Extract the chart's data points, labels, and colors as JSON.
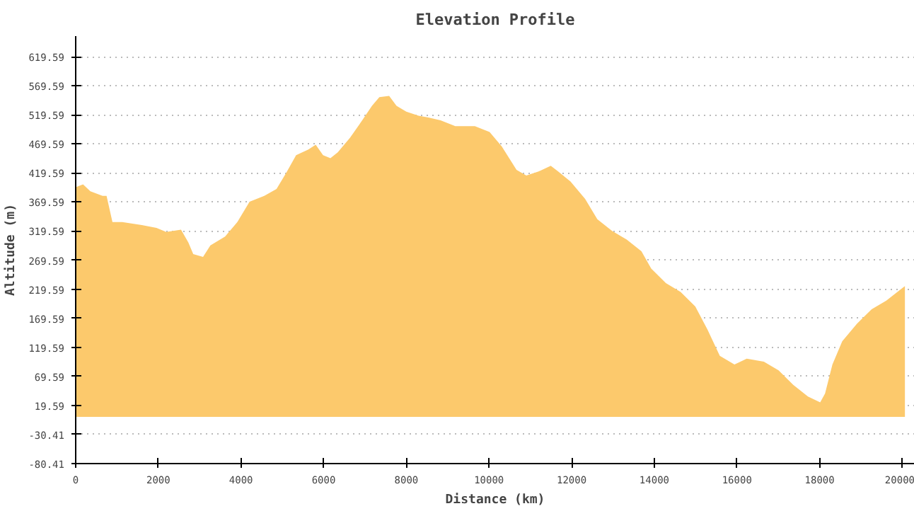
{
  "chart_data": {
    "type": "area",
    "title": "Elevation Profile",
    "xlabel": "Distance (km)",
    "ylabel": "Altitude (m)",
    "x": [
      0,
      178,
      355,
      650,
      747,
      889,
      1126,
      1600,
      1955,
      2192,
      2548,
      2725,
      2844,
      3081,
      3259,
      3614,
      3911,
      4207,
      4562,
      4859,
      5096,
      5333,
      5629,
      5807,
      5985,
      6163,
      6340,
      6636,
      6932,
      7169,
      7347,
      7584,
      7762,
      7999,
      8295,
      8532,
      8828,
      9185,
      9658,
      10014,
      10310,
      10666,
      10903,
      11199,
      11495,
      11673,
      11969,
      12325,
      12621,
      12977,
      13332,
      13688,
      13925,
      14280,
      14636,
      14991,
      15287,
      15584,
      15939,
      16235,
      16650,
      17006,
      17361,
      17717,
      18013,
      18131,
      18309,
      18546,
      18901,
      19257,
      19613,
      20063
    ],
    "series": [
      {
        "color": "#fcc96c",
        "values": [
          395,
          400,
          388,
          380,
          380,
          335,
          335,
          330,
          325,
          318,
          322,
          300,
          280,
          275,
          295,
          310,
          335,
          370,
          380,
          392,
          420,
          450,
          460,
          468,
          450,
          445,
          455,
          480,
          510,
          535,
          550,
          552,
          535,
          525,
          518,
          515,
          510,
          500,
          500,
          490,
          465,
          425,
          415,
          422,
          432,
          422,
          405,
          375,
          340,
          320,
          305,
          285,
          255,
          230,
          215,
          190,
          150,
          105,
          90,
          100,
          95,
          80,
          55,
          35,
          25,
          40,
          90,
          130,
          160,
          185,
          200,
          225
        ]
      }
    ],
    "xlim": [
      0,
      20300
    ],
    "ylim": [
      -80.41,
      655
    ],
    "xticks": [
      0,
      2000,
      4000,
      6000,
      8000,
      10000,
      12000,
      14000,
      16000,
      18000,
      20000
    ],
    "yticks": [
      -80.41,
      -30.41,
      19.59,
      69.59,
      119.59,
      169.59,
      219.59,
      269.59,
      319.59,
      369.59,
      419.59,
      469.59,
      519.59,
      569.59,
      619.59
    ],
    "grid": "y"
  }
}
